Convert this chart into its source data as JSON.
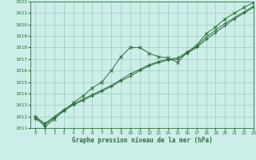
{
  "bg_color": "#cceee8",
  "grid_color": "#99ccbb",
  "line_color": "#2d6e3e",
  "xlabel": "Graphe pression niveau de la mer (hPa)",
  "xlabel_color": "#2d6e3e",
  "ylim": [
    1011,
    1022
  ],
  "xlim": [
    -0.5,
    23
  ],
  "yticks": [
    1011,
    1012,
    1013,
    1014,
    1015,
    1016,
    1017,
    1018,
    1019,
    1020,
    1021,
    1022
  ],
  "xticks": [
    0,
    1,
    2,
    3,
    4,
    5,
    6,
    7,
    8,
    9,
    10,
    11,
    12,
    13,
    14,
    15,
    16,
    17,
    18,
    19,
    20,
    21,
    22,
    23
  ],
  "series": [
    {
      "x": [
        0,
        1,
        2,
        3,
        4,
        5,
        6,
        7,
        8,
        9,
        10,
        11,
        12,
        13,
        14,
        15,
        16,
        17,
        18,
        19,
        20,
        21,
        22,
        23
      ],
      "y": [
        1012.0,
        1011.1,
        1011.8,
        1012.5,
        1013.2,
        1013.8,
        1014.5,
        1015.0,
        1016.0,
        1017.2,
        1018.0,
        1018.0,
        1017.5,
        1017.2,
        1017.1,
        1016.7,
        1017.6,
        1018.2,
        1019.2,
        1019.8,
        1020.5,
        1021.0,
        1021.5,
        1021.9
      ],
      "marker": "x"
    },
    {
      "x": [
        0,
        1,
        2,
        3,
        4,
        5,
        6,
        7,
        8,
        9,
        10,
        11,
        12,
        13,
        14,
        15,
        16,
        17,
        18,
        19,
        20,
        21,
        22,
        23
      ],
      "y": [
        1011.8,
        1011.3,
        1011.9,
        1012.5,
        1013.0,
        1013.4,
        1013.8,
        1014.2,
        1014.6,
        1015.1,
        1015.5,
        1016.0,
        1016.4,
        1016.7,
        1016.9,
        1017.0,
        1017.5,
        1018.0,
        1018.7,
        1019.3,
        1019.9,
        1020.5,
        1021.0,
        1021.5
      ],
      "marker": "+"
    },
    {
      "x": [
        0,
        1,
        2,
        3,
        4,
        5,
        6,
        7,
        8,
        9,
        10,
        11,
        12,
        13,
        14,
        15,
        16,
        17,
        18,
        19,
        20,
        21,
        22,
        23
      ],
      "y": [
        1012.0,
        1011.4,
        1012.0,
        1012.6,
        1013.1,
        1013.5,
        1013.9,
        1014.3,
        1014.7,
        1015.2,
        1015.7,
        1016.1,
        1016.5,
        1016.8,
        1017.0,
        1017.1,
        1017.6,
        1018.1,
        1018.9,
        1019.5,
        1020.1,
        1020.6,
        1021.1,
        1021.6
      ],
      "marker": "+"
    }
  ]
}
